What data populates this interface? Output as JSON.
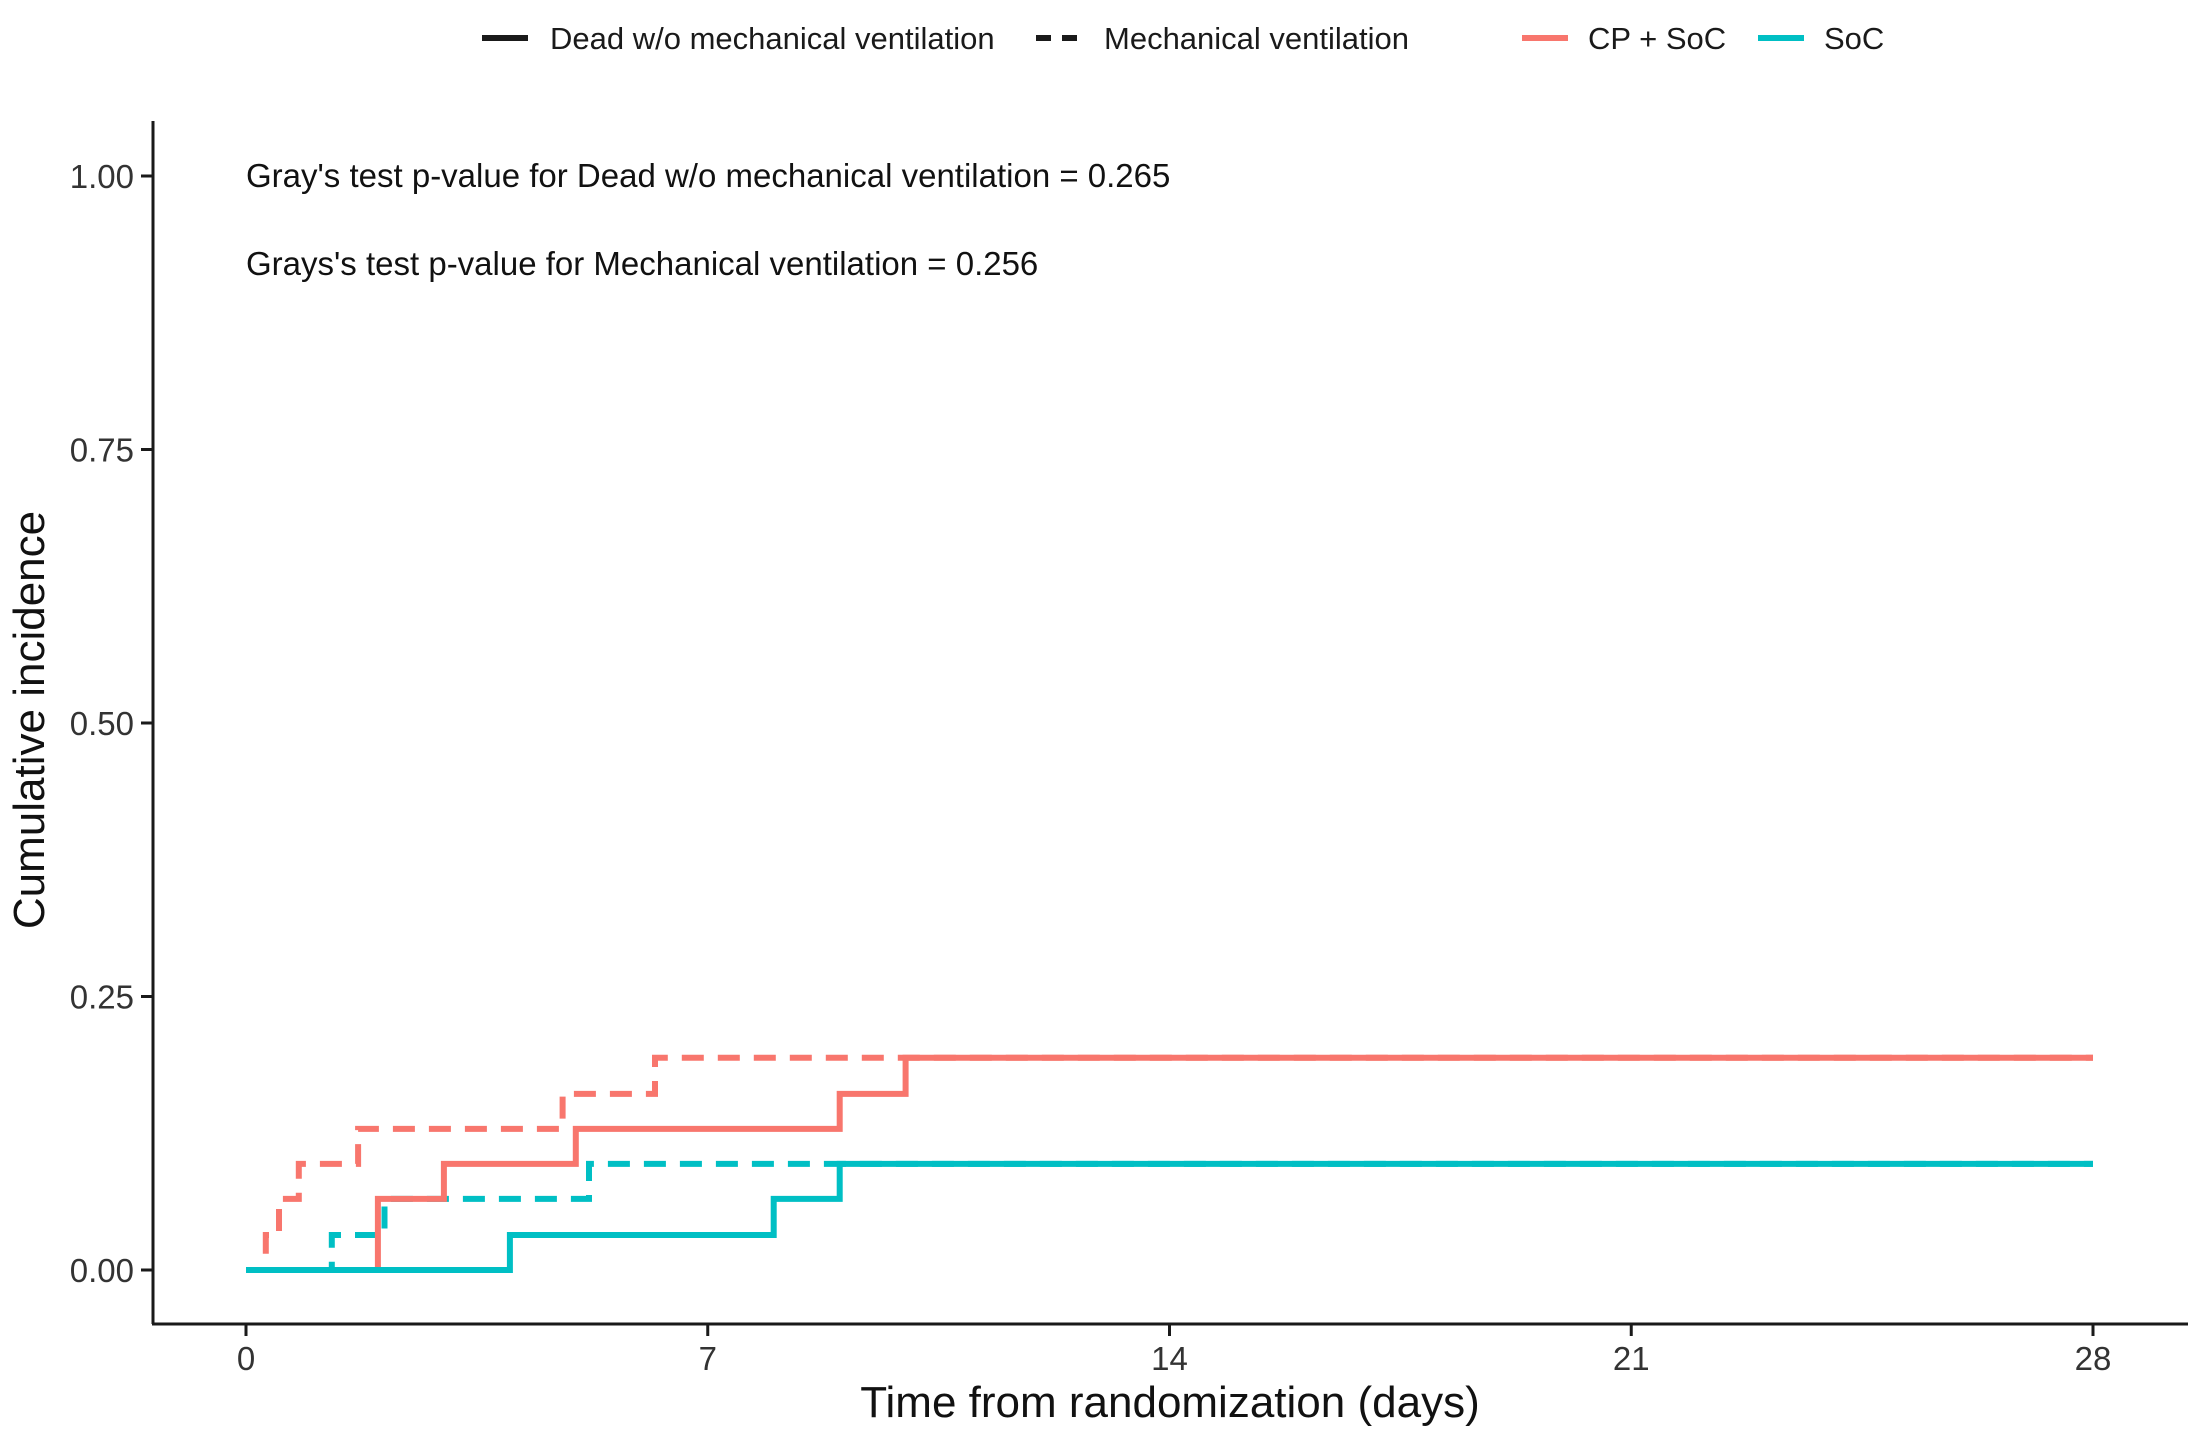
{
  "chart_data": {
    "type": "line",
    "step": true,
    "title": "",
    "xlabel": "Time from randomization (days)",
    "ylabel": "Cumulative incidence",
    "xlim": [
      0,
      28
    ],
    "ylim": [
      0,
      1
    ],
    "x_ticks": [
      {
        "value": 0,
        "label": "0"
      },
      {
        "value": 7,
        "label": "7"
      },
      {
        "value": 14,
        "label": "14"
      },
      {
        "value": 21,
        "label": "21"
      },
      {
        "value": 28,
        "label": "28"
      }
    ],
    "y_ticks": [
      {
        "value": 0,
        "label": "0.00"
      },
      {
        "value": 0.25,
        "label": "0.25"
      },
      {
        "value": 0.5,
        "label": "0.50"
      },
      {
        "value": 0.75,
        "label": "0.75"
      },
      {
        "value": 1.0,
        "label": "1.00"
      }
    ],
    "grid": false,
    "legend_position": "top",
    "legend": {
      "linetype": [
        {
          "label": "Dead w/o mechanical ventilation",
          "dash": "solid"
        },
        {
          "label": "Mechanical ventilation",
          "dash": "dashed"
        }
      ],
      "color": [
        {
          "label": "CP + SoC",
          "color": "#F8766D"
        },
        {
          "label": "SoC",
          "color": "#00BFC4"
        }
      ]
    },
    "annotations": [
      "Gray's test p-value for Dead w/o mechanical ventilation = 0.265",
      "Grays's test p-value for Mechanical ventilation = 0.256"
    ],
    "series": [
      {
        "group": "CP + SoC",
        "outcome": "Dead w/o mechanical ventilation",
        "color": "#F8766D",
        "dash": "solid",
        "points": [
          [
            0,
            0
          ],
          [
            2.0,
            0
          ],
          [
            2.0,
            0.065
          ],
          [
            3.0,
            0.065
          ],
          [
            3.0,
            0.097
          ],
          [
            5.0,
            0.097
          ],
          [
            5.0,
            0.129
          ],
          [
            9.0,
            0.129
          ],
          [
            9.0,
            0.161
          ],
          [
            10.0,
            0.161
          ],
          [
            10.0,
            0.194
          ],
          [
            28,
            0.194
          ]
        ]
      },
      {
        "group": "CP + SoC",
        "outcome": "Mechanical ventilation",
        "color": "#F8766D",
        "dash": "dashed",
        "points": [
          [
            0,
            0
          ],
          [
            0.3,
            0
          ],
          [
            0.3,
            0.032
          ],
          [
            0.5,
            0.032
          ],
          [
            0.5,
            0.065
          ],
          [
            0.8,
            0.065
          ],
          [
            0.8,
            0.097
          ],
          [
            1.7,
            0.097
          ],
          [
            1.7,
            0.129
          ],
          [
            4.8,
            0.129
          ],
          [
            4.8,
            0.161
          ],
          [
            6.2,
            0.161
          ],
          [
            6.2,
            0.194
          ],
          [
            28,
            0.194
          ]
        ]
      },
      {
        "group": "SoC",
        "outcome": "Dead w/o mechanical ventilation",
        "color": "#00BFC4",
        "dash": "solid",
        "points": [
          [
            0,
            0
          ],
          [
            4.0,
            0
          ],
          [
            4.0,
            0.032
          ],
          [
            8.0,
            0.032
          ],
          [
            8.0,
            0.065
          ],
          [
            9.0,
            0.065
          ],
          [
            9.0,
            0.097
          ],
          [
            28,
            0.097
          ]
        ]
      },
      {
        "group": "SoC",
        "outcome": "Mechanical ventilation",
        "color": "#00BFC4",
        "dash": "dashed",
        "points": [
          [
            0,
            0
          ],
          [
            1.3,
            0
          ],
          [
            1.3,
            0.032
          ],
          [
            2.1,
            0.032
          ],
          [
            2.1,
            0.065
          ],
          [
            5.2,
            0.065
          ],
          [
            5.2,
            0.097
          ],
          [
            28,
            0.097
          ]
        ]
      }
    ]
  }
}
